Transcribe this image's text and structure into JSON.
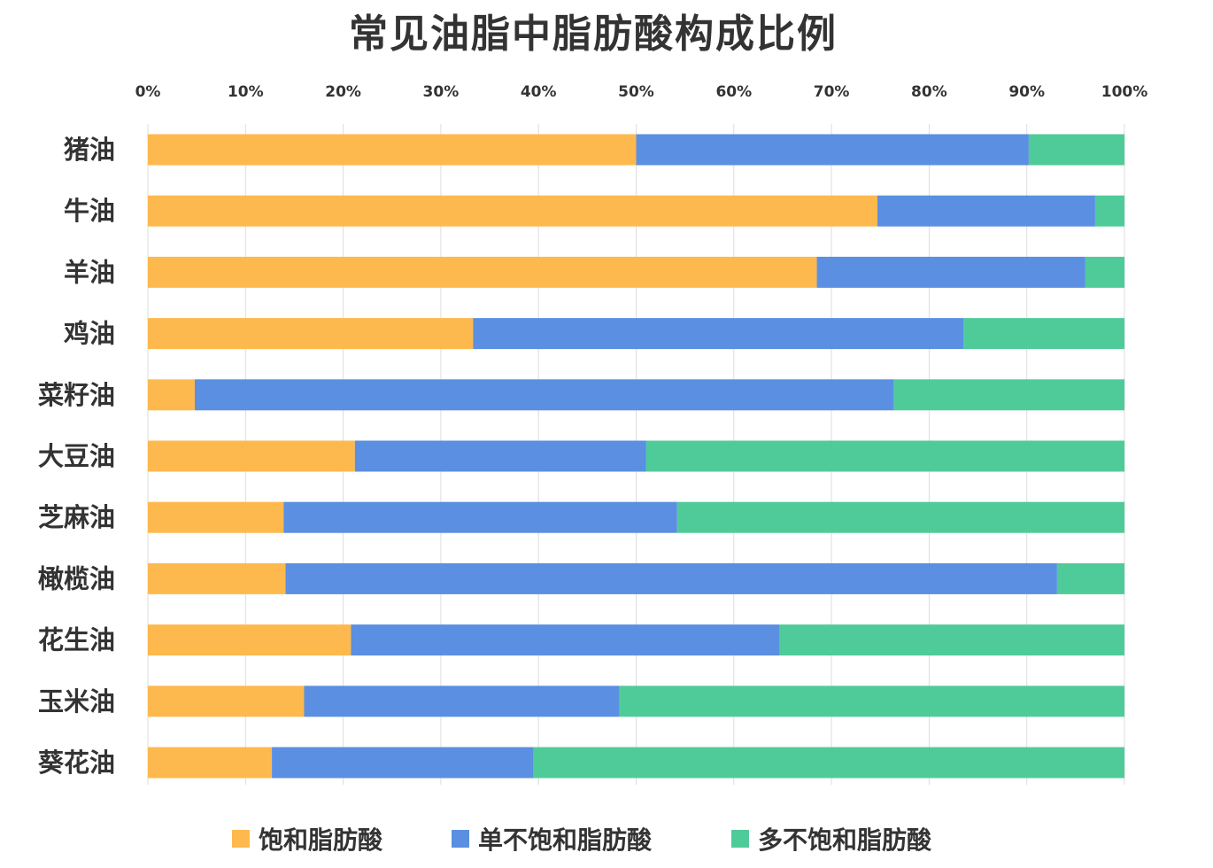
{
  "chart_data": {
    "type": "bar",
    "orientation": "horizontal",
    "stacked": true,
    "title": "常见油脂中脂肪酸构成比例",
    "xlim": [
      0,
      100
    ],
    "x_ticks": [
      "0%",
      "10%",
      "20%",
      "30%",
      "40%",
      "50%",
      "60%",
      "70%",
      "80%",
      "90%",
      "100%"
    ],
    "grid": true,
    "legend_position": "bottom",
    "categories": [
      "猪油",
      "牛油",
      "羊油",
      "鸡油",
      "菜籽油",
      "大豆油",
      "芝麻油",
      "橄榄油",
      "花生油",
      "玉米油",
      "葵花油"
    ],
    "series": [
      {
        "name": "饱和脂肪酸",
        "color": "#FDB94D",
        "values": [
          50,
          74.7,
          68.5,
          33.3,
          4.8,
          21.2,
          13.9,
          14.1,
          20.8,
          16,
          12.7
        ]
      },
      {
        "name": "单不饱和脂肪酸",
        "color": "#5A8FE2",
        "values": [
          40.2,
          22.3,
          27.5,
          50.2,
          71.6,
          29.8,
          40.3,
          79,
          43.9,
          32.3,
          26.8
        ]
      },
      {
        "name": "多不饱和脂肪酸",
        "color": "#4FCB99",
        "values": [
          9.8,
          3,
          4,
          16.5,
          23.6,
          49,
          45.8,
          6.9,
          35.3,
          51.7,
          60.5
        ]
      }
    ]
  }
}
